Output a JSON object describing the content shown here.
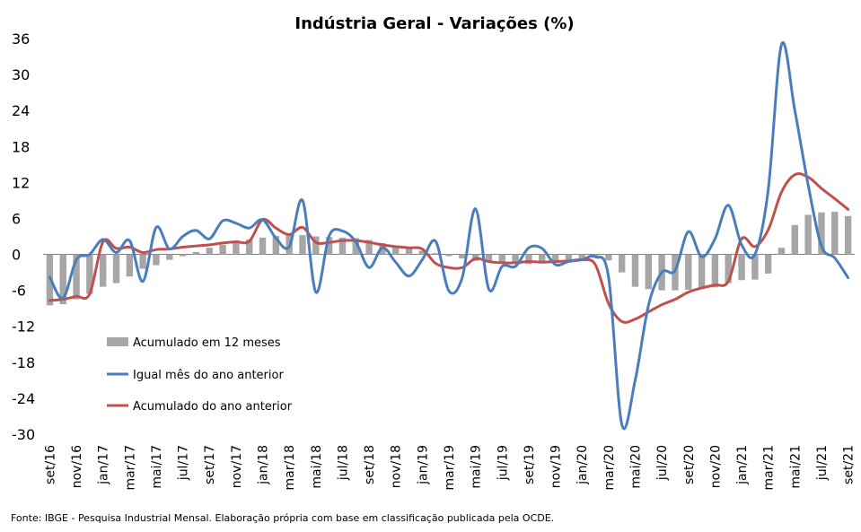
{
  "chart_data": {
    "type": "bar+line",
    "title": "Indústria Geral - Variações (%)",
    "ylim": [
      -30,
      36
    ],
    "yticks": [
      "36",
      "30",
      "24",
      "18",
      "12",
      "6",
      "0",
      "-6",
      "-12",
      "-18",
      "-24",
      "-30"
    ],
    "ytick_values": [
      36,
      30,
      24,
      18,
      12,
      6,
      0,
      -6,
      -12,
      -18,
      -24,
      -30
    ],
    "xtick_labels": [
      "set/16",
      "nov/16",
      "jan/17",
      "mar/17",
      "mai/17",
      "jul/17",
      "set/17",
      "nov/17",
      "jan/18",
      "mar/18",
      "mai/18",
      "jul/18",
      "set/18",
      "nov/18",
      "jan/19",
      "mar/19",
      "mai/19",
      "jul/19",
      "set/19",
      "nov/19",
      "jan/20",
      "mar/20",
      "mai/20",
      "jul/20",
      "set/20",
      "nov/20",
      "jan/21",
      "mar/21",
      "mai/21",
      "jul/21",
      "set/21"
    ],
    "categories": [
      "set/16",
      "out/16",
      "nov/16",
      "dez/16",
      "jan/17",
      "fev/17",
      "mar/17",
      "abr/17",
      "mai/17",
      "jun/17",
      "jul/17",
      "ago/17",
      "set/17",
      "out/17",
      "nov/17",
      "dez/17",
      "jan/18",
      "fev/18",
      "mar/18",
      "abr/18",
      "mai/18",
      "jun/18",
      "jul/18",
      "ago/18",
      "set/18",
      "out/18",
      "nov/18",
      "dez/18",
      "jan/19",
      "fev/19",
      "mar/19",
      "abr/19",
      "mai/19",
      "jun/19",
      "jul/19",
      "ago/19",
      "set/19",
      "out/19",
      "nov/19",
      "dez/19",
      "jan/20",
      "fev/20",
      "mar/20",
      "abr/20",
      "mai/20",
      "jun/20",
      "jul/20",
      "ago/20",
      "set/20",
      "out/20",
      "nov/20",
      "dez/20",
      "jan/21",
      "fev/21",
      "mar/21",
      "abr/21",
      "mai/21",
      "jun/21",
      "jul/21",
      "ago/21",
      "set/21"
    ],
    "series": [
      {
        "name": "Acumulado em 12 meses",
        "kind": "bar",
        "color": "#a6a6a6",
        "values": [
          -8.5,
          -8.3,
          -7.5,
          -6.6,
          -5.4,
          -4.8,
          -3.7,
          -2.4,
          -1.8,
          -0.9,
          -0.3,
          0.4,
          1.1,
          1.6,
          2.1,
          2.5,
          2.8,
          3.1,
          3.2,
          3.2,
          3.0,
          2.9,
          2.8,
          2.7,
          2.4,
          1.9,
          1.5,
          1.1,
          0.6,
          0.2,
          -0.3,
          -0.7,
          -1.1,
          -1.3,
          -1.5,
          -1.6,
          -1.6,
          -1.5,
          -1.3,
          -1.2,
          -0.9,
          -0.6,
          -1.0,
          -3.0,
          -5.4,
          -5.8,
          -6.0,
          -6.0,
          -5.9,
          -5.7,
          -5.5,
          -4.8,
          -4.3,
          -4.2,
          -3.2,
          1.1,
          4.9,
          6.6,
          7.0,
          7.1,
          6.4
        ]
      },
      {
        "name": "Igual mês do ano anterior",
        "kind": "line",
        "color": "#4a7ebb",
        "values": [
          -3.8,
          -7.3,
          -0.9,
          0.0,
          2.5,
          0.3,
          2.3,
          -4.5,
          4.5,
          0.9,
          3.0,
          4.0,
          2.6,
          5.6,
          5.2,
          4.4,
          5.8,
          2.7,
          1.3,
          9.0,
          -6.3,
          3.1,
          3.9,
          2.1,
          -2.2,
          1.1,
          -1.3,
          -3.6,
          -0.9,
          2.2,
          -6.1,
          -3.9,
          7.6,
          -5.8,
          -2.0,
          -2.0,
          1.1,
          1.0,
          -1.7,
          -1.2,
          -0.9,
          -0.4,
          -3.8,
          -28.4,
          -21.0,
          -8.5,
          -3.0,
          -2.7,
          3.8,
          -0.4,
          2.6,
          8.2,
          1.6,
          0.0,
          10.8,
          35.0,
          24.0,
          11.6,
          1.4,
          -0.6,
          -3.9
        ]
      },
      {
        "name": "Acumulado do ano anterior",
        "kind": "line",
        "color": "#c0504d",
        "values": [
          -7.7,
          -7.5,
          -7.0,
          -6.6,
          2.1,
          1.0,
          1.2,
          0.3,
          0.8,
          0.9,
          1.2,
          1.4,
          1.6,
          1.9,
          2.1,
          2.2,
          5.8,
          4.4,
          3.3,
          4.5,
          2.0,
          2.0,
          2.3,
          2.3,
          2.0,
          1.6,
          1.3,
          1.1,
          0.9,
          -1.5,
          -2.2,
          -2.2,
          -0.7,
          -1.2,
          -1.4,
          -1.4,
          -1.2,
          -1.3,
          -1.2,
          -1.1,
          -0.9,
          -1.7,
          -8.2,
          -11.2,
          -10.8,
          -9.6,
          -8.4,
          -7.5,
          -6.3,
          -5.6,
          -5.1,
          -4.5,
          2.6,
          1.3,
          4.1,
          10.4,
          13.3,
          12.9,
          11.0,
          9.3,
          7.5
        ]
      }
    ],
    "source_note": "Fonte: IBGE - Pesquisa Industrial Mensal. Elaboração própria com base em classificação publicada pela OCDE.",
    "grid": false,
    "legend_position": "lower-left"
  }
}
